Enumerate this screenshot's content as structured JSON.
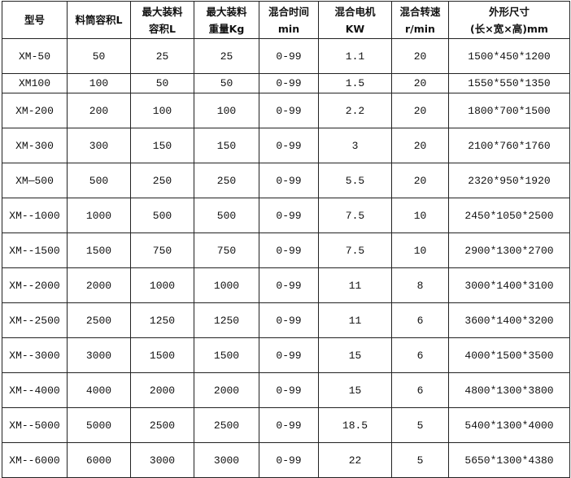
{
  "headers": [
    [
      "型号"
    ],
    [
      "料筒容积L"
    ],
    [
      "最大装料",
      "容积L"
    ],
    [
      "最大装料",
      "重量Kg"
    ],
    [
      "混合时间",
      "min"
    ],
    [
      "混合电机",
      "KW"
    ],
    [
      "混合转速",
      "r/min"
    ],
    [
      "外形尺寸",
      "(长×宽×高)mm"
    ]
  ],
  "rows": [
    [
      "XM-50",
      "50",
      "25",
      "25",
      "0-99",
      "1.1",
      "20",
      "1500*450*1200"
    ],
    [
      "XM100",
      "100",
      "50",
      "50",
      "0-99",
      "1.5",
      "20",
      "1550*550*1350"
    ],
    [
      "XM-200",
      "200",
      "100",
      "100",
      "0-99",
      "2.2",
      "20",
      "1800*700*1500"
    ],
    [
      "XM-300",
      "300",
      "150",
      "150",
      "0-99",
      "3",
      "20",
      "2100*760*1760"
    ],
    [
      "XM—500",
      "500",
      "250",
      "250",
      "0-99",
      "5.5",
      "20",
      "2320*950*1920"
    ],
    [
      "XM--1000",
      "1000",
      "500",
      "500",
      "0-99",
      "7.5",
      "10",
      "2450*1050*2500"
    ],
    [
      "XM--1500",
      "1500",
      "750",
      "750",
      "0-99",
      "7.5",
      "10",
      "2900*1300*2700"
    ],
    [
      "XM--2000",
      "2000",
      "1000",
      "1000",
      "0-99",
      "11",
      "8",
      "3000*1400*3100"
    ],
    [
      "XM--2500",
      "2500",
      "1250",
      "1250",
      "0-99",
      "11",
      "6",
      "3600*1400*3200"
    ],
    [
      "XM--3000",
      "3000",
      "1500",
      "1500",
      "0-99",
      "15",
      "6",
      "4000*1500*3500"
    ],
    [
      "XM--4000",
      "4000",
      "2000",
      "2000",
      "0-99",
      "15",
      "6",
      "4800*1300*3800"
    ],
    [
      "XM--5000",
      "5000",
      "2500",
      "2500",
      "0-99",
      "18.5",
      "5",
      "5400*1300*4000"
    ],
    [
      "XM--6000",
      "6000",
      "3000",
      "3000",
      "0-99",
      "22",
      "5",
      "5650*1300*4380"
    ]
  ]
}
